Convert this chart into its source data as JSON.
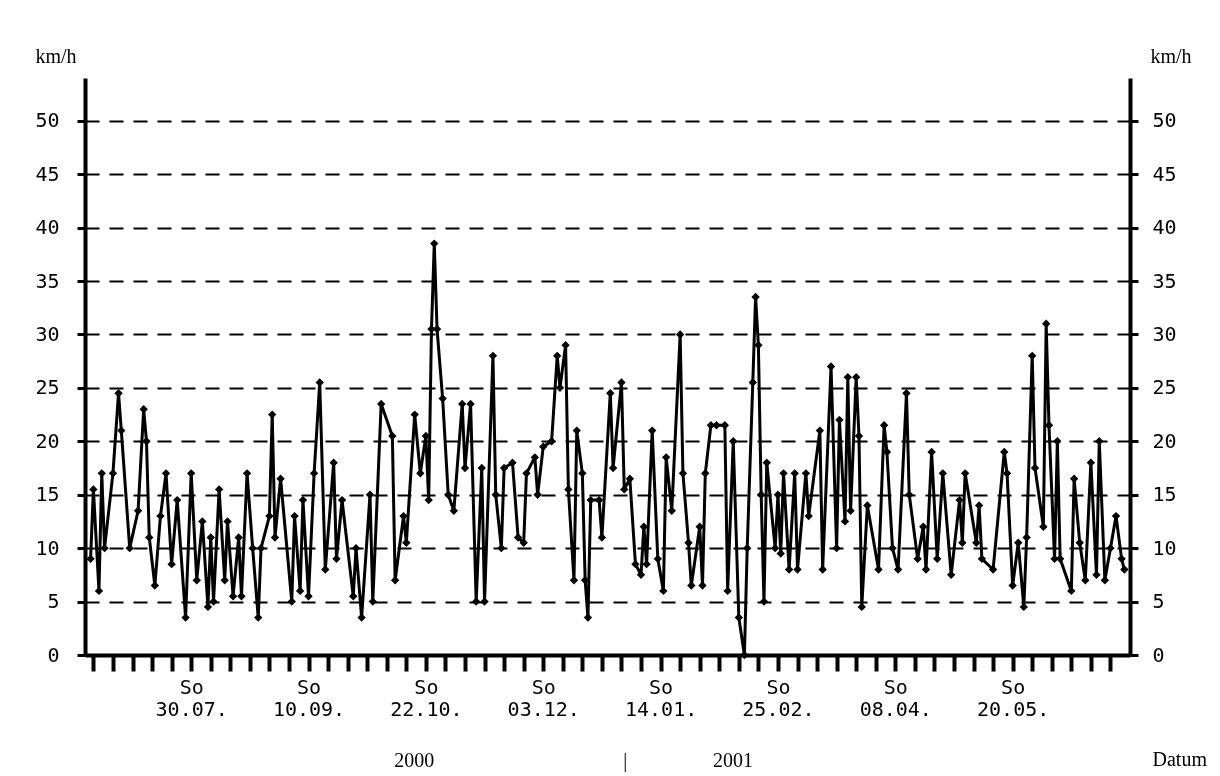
{
  "chart_data": {
    "type": "line",
    "xlabel": "Datum",
    "ylabel": "km/h",
    "y2label": "km/h",
    "annotations": [
      "2000",
      "|",
      "2001"
    ],
    "x": [
      "2000-06-24",
      "2000-06-25",
      "2000-06-27",
      "2000-06-28",
      "2000-06-29",
      "2000-07-02",
      "2000-07-04",
      "2000-07-05",
      "2000-07-08",
      "2000-07-11",
      "2000-07-13",
      "2000-07-14",
      "2000-07-15",
      "2000-07-17",
      "2000-07-19",
      "2000-07-21",
      "2000-07-23",
      "2000-07-25",
      "2000-07-28",
      "2000-07-30",
      "2000-08-01",
      "2000-08-03",
      "2000-08-05",
      "2000-08-06",
      "2000-08-07",
      "2000-08-09",
      "2000-08-11",
      "2000-08-12",
      "2000-08-14",
      "2000-08-16",
      "2000-08-17",
      "2000-08-19",
      "2000-08-21",
      "2000-08-23",
      "2000-08-24",
      "2000-08-27",
      "2000-08-28",
      "2000-08-29",
      "2000-08-31",
      "2000-09-04",
      "2000-09-05",
      "2000-09-07",
      "2000-09-08",
      "2000-09-10",
      "2000-09-12",
      "2000-09-14",
      "2000-09-16",
      "2000-09-19",
      "2000-09-20",
      "2000-09-22",
      "2000-09-26",
      "2000-09-27",
      "2000-09-29",
      "2000-10-02",
      "2000-10-03",
      "2000-10-06",
      "2000-10-10",
      "2000-10-11",
      "2000-10-14",
      "2000-10-15",
      "2000-10-18",
      "2000-10-20",
      "2000-10-22",
      "2000-10-23",
      "2000-10-24",
      "2000-10-25",
      "2000-10-26",
      "2000-10-28",
      "2000-10-30",
      "2000-11-01",
      "2000-11-04",
      "2000-11-05",
      "2000-11-07",
      "2000-11-09",
      "2000-11-11",
      "2000-11-12",
      "2000-11-15",
      "2000-11-16",
      "2000-11-18",
      "2000-11-19",
      "2000-11-22",
      "2000-11-24",
      "2000-11-26",
      "2000-11-27",
      "2000-11-30",
      "2000-12-01",
      "2000-12-03",
      "2000-12-06",
      "2000-12-08",
      "2000-12-09",
      "2000-12-11",
      "2000-12-12",
      "2000-12-14",
      "2000-12-15",
      "2000-12-17",
      "2000-12-18",
      "2000-12-19",
      "2000-12-20",
      "2000-12-23",
      "2000-12-24",
      "2000-12-27",
      "2000-12-28",
      "2000-12-31",
      "2001-01-01",
      "2001-01-03",
      "2001-01-05",
      "2001-01-07",
      "2001-01-08",
      "2001-01-09",
      "2001-01-11",
      "2001-01-13",
      "2001-01-15",
      "2001-01-16",
      "2001-01-18",
      "2001-01-21",
      "2001-01-22",
      "2001-01-24",
      "2001-01-25",
      "2001-01-28",
      "2001-01-29",
      "2001-01-30",
      "2001-02-01",
      "2001-02-03",
      "2001-02-06",
      "2001-02-07",
      "2001-02-09",
      "2001-02-11",
      "2001-02-13",
      "2001-02-14",
      "2001-02-16",
      "2001-02-17",
      "2001-02-18",
      "2001-02-19",
      "2001-02-20",
      "2001-02-21",
      "2001-02-24",
      "2001-02-25",
      "2001-02-26",
      "2001-02-27",
      "2001-03-01",
      "2001-03-03",
      "2001-03-04",
      "2001-03-07",
      "2001-03-08",
      "2001-03-12",
      "2001-03-13",
      "2001-03-16",
      "2001-03-18",
      "2001-03-19",
      "2001-03-21",
      "2001-03-22",
      "2001-03-23",
      "2001-03-25",
      "2001-03-26",
      "2001-03-27",
      "2001-03-29",
      "2001-04-02",
      "2001-04-04",
      "2001-04-05",
      "2001-04-07",
      "2001-04-09",
      "2001-04-12",
      "2001-04-13",
      "2001-04-16",
      "2001-04-18",
      "2001-04-19",
      "2001-04-21",
      "2001-04-23",
      "2001-04-25",
      "2001-04-28",
      "2001-05-01",
      "2001-05-02",
      "2001-05-03",
      "2001-05-07",
      "2001-05-08",
      "2001-05-09",
      "2001-05-13",
      "2001-05-17",
      "2001-05-18",
      "2001-05-20",
      "2001-05-22",
      "2001-05-24",
      "2001-05-25",
      "2001-05-27",
      "2001-05-28",
      "2001-05-31",
      "2001-06-01",
      "2001-06-02",
      "2001-06-04",
      "2001-06-05",
      "2001-06-06",
      "2001-06-10",
      "2001-06-11",
      "2001-06-13",
      "2001-06-15",
      "2001-06-17",
      "2001-06-19",
      "2001-06-20",
      "2001-06-22",
      "2001-06-24",
      "2001-06-26",
      "2001-06-28",
      "2001-06-29"
    ],
    "series": [
      {
        "color": "#000000",
        "values": [
          9,
          15.5,
          6,
          17,
          10,
          17,
          24.5,
          21,
          10,
          13.5,
          23,
          20,
          11,
          6.5,
          13,
          17,
          8.5,
          14.5,
          3.5,
          17,
          7,
          12.5,
          4.5,
          11,
          5,
          15.5,
          7,
          12.5,
          5.5,
          11,
          5.5,
          17,
          10,
          3.5,
          10,
          13,
          22.5,
          11,
          16.5,
          5,
          13,
          6,
          14.5,
          5.5,
          17,
          25.5,
          8,
          18,
          9,
          14.5,
          5.5,
          10,
          3.5,
          15,
          5,
          23.5,
          20.5,
          7,
          13,
          10.5,
          22.5,
          17,
          20.5,
          14.5,
          30.5,
          38.5,
          30.5,
          24,
          15,
          13.5,
          23.5,
          17.5,
          23.5,
          5,
          17.5,
          5,
          28,
          15,
          10,
          17.5,
          18,
          11,
          10.5,
          17,
          18.5,
          15,
          19.5,
          20,
          28,
          25,
          29,
          15.5,
          7,
          21,
          17,
          7,
          3.5,
          14.5,
          14.5,
          11,
          24.5,
          17.5,
          25.5,
          15.5,
          16.5,
          8.5,
          7.5,
          12,
          8.5,
          21,
          9,
          6,
          18.5,
          13.5,
          30,
          17,
          10.5,
          6.5,
          12,
          6.5,
          17,
          21.5,
          21.5,
          21.5,
          6,
          20,
          3.5,
          0,
          10,
          25.5,
          33.5,
          29,
          15,
          5,
          18,
          10,
          15,
          9.5,
          17,
          8,
          17,
          8,
          17,
          13,
          21,
          8,
          27,
          10,
          22,
          12.5,
          26,
          13.5,
          26,
          20.5,
          4.5,
          14,
          8,
          21.5,
          19,
          10,
          8,
          24.5,
          15,
          9,
          12,
          8,
          19,
          9,
          17,
          7.5,
          14.5,
          10.5,
          17,
          10.5,
          14,
          9,
          8,
          19,
          17,
          6.5,
          10.5,
          4.5,
          11,
          28,
          17.5,
          12,
          31,
          21.5,
          9,
          20,
          9,
          6,
          16.5,
          10.5,
          7,
          18,
          7.5,
          20,
          7,
          10,
          13,
          9,
          8
        ]
      }
    ],
    "xlim": [
      "2000-06-22",
      "2001-07-01"
    ],
    "xticks": [
      {
        "value": "2000-06-25",
        "label": null
      },
      {
        "value": "2000-07-02",
        "label": null
      },
      {
        "value": "2000-07-09",
        "label": null
      },
      {
        "value": "2000-07-16",
        "label": null
      },
      {
        "value": "2000-07-23",
        "label": null
      },
      {
        "value": "2000-07-30",
        "label": "So\n30.07."
      },
      {
        "value": "2000-08-06",
        "label": null
      },
      {
        "value": "2000-08-13",
        "label": null
      },
      {
        "value": "2000-08-20",
        "label": null
      },
      {
        "value": "2000-08-27",
        "label": null
      },
      {
        "value": "2000-09-03",
        "label": null
      },
      {
        "value": "2000-09-10",
        "label": "So\n10.09."
      },
      {
        "value": "2000-09-17",
        "label": null
      },
      {
        "value": "2000-09-24",
        "label": null
      },
      {
        "value": "2000-10-01",
        "label": null
      },
      {
        "value": "2000-10-08",
        "label": null
      },
      {
        "value": "2000-10-15",
        "label": null
      },
      {
        "value": "2000-10-22",
        "label": "So\n22.10."
      },
      {
        "value": "2000-10-29",
        "label": null
      },
      {
        "value": "2000-11-05",
        "label": null
      },
      {
        "value": "2000-11-12",
        "label": null
      },
      {
        "value": "2000-11-19",
        "label": null
      },
      {
        "value": "2000-11-26",
        "label": null
      },
      {
        "value": "2000-12-03",
        "label": "So\n03.12."
      },
      {
        "value": "2000-12-10",
        "label": null
      },
      {
        "value": "2000-12-17",
        "label": null
      },
      {
        "value": "2000-12-24",
        "label": null
      },
      {
        "value": "2000-12-31",
        "label": null
      },
      {
        "value": "2001-01-07",
        "label": null
      },
      {
        "value": "2001-01-14",
        "label": "So\n14.01."
      },
      {
        "value": "2001-01-21",
        "label": null
      },
      {
        "value": "2001-01-28",
        "label": null
      },
      {
        "value": "2001-02-04",
        "label": null
      },
      {
        "value": "2001-02-11",
        "label": null
      },
      {
        "value": "2001-02-18",
        "label": null
      },
      {
        "value": "2001-02-25",
        "label": "So\n25.02."
      },
      {
        "value": "2001-03-04",
        "label": null
      },
      {
        "value": "2001-03-11",
        "label": null
      },
      {
        "value": "2001-03-18",
        "label": null
      },
      {
        "value": "2001-03-25",
        "label": null
      },
      {
        "value": "2001-04-01",
        "label": null
      },
      {
        "value": "2001-04-08",
        "label": "So\n08.04."
      },
      {
        "value": "2001-04-15",
        "label": null
      },
      {
        "value": "2001-04-22",
        "label": null
      },
      {
        "value": "2001-04-29",
        "label": null
      },
      {
        "value": "2001-05-06",
        "label": null
      },
      {
        "value": "2001-05-13",
        "label": null
      },
      {
        "value": "2001-05-20",
        "label": "So\n20.05."
      },
      {
        "value": "2001-05-27",
        "label": null
      },
      {
        "value": "2001-06-03",
        "label": null
      },
      {
        "value": "2001-06-10",
        "label": null
      },
      {
        "value": "2001-06-17",
        "label": null
      },
      {
        "value": "2001-06-24",
        "label": null
      }
    ],
    "ylim": [
      0,
      54
    ],
    "yticks": [
      0,
      5,
      10,
      15,
      20,
      25,
      30,
      35,
      40,
      45,
      50
    ],
    "y2lim": [
      0,
      54
    ],
    "y2ticks": [
      0,
      5,
      10,
      15,
      20,
      25,
      30,
      35,
      40,
      45,
      50
    ],
    "grid": "y",
    "marker": "diamond",
    "line_style": "solid"
  }
}
